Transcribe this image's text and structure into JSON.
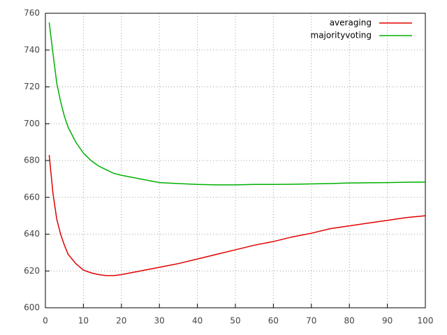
{
  "chart_data": {
    "type": "line",
    "x": [
      1,
      2,
      3,
      4,
      5,
      6,
      8,
      10,
      12,
      14,
      16,
      18,
      20,
      25,
      30,
      35,
      40,
      45,
      50,
      55,
      60,
      65,
      70,
      75,
      80,
      85,
      90,
      95,
      100
    ],
    "series": [
      {
        "name": "averaging",
        "color": "#e00000",
        "values": [
          683,
          662,
          648,
          640,
          634,
          629,
          624,
          620.5,
          619,
          618,
          617.5,
          617.5,
          618,
          620,
          622,
          624,
          626.5,
          629,
          631.5,
          634,
          636,
          638.5,
          640.5,
          643,
          644.5,
          646,
          647.5,
          649,
          650
        ]
      },
      {
        "name": "majorityvoting",
        "color": "#00b000",
        "values": [
          755,
          738,
          722,
          712,
          704,
          698,
          690,
          684,
          680,
          677,
          675,
          673,
          672,
          670,
          668,
          667.5,
          667,
          666.8,
          666.8,
          667,
          667,
          667.1,
          667.3,
          667.5,
          667.8,
          667.9,
          668,
          668.2,
          668.3
        ]
      }
    ],
    "xlim": [
      0,
      100
    ],
    "xticks": [
      0,
      10,
      20,
      30,
      40,
      50,
      60,
      70,
      80,
      90,
      100
    ],
    "ylim": [
      600,
      760
    ],
    "yticks": [
      600,
      620,
      640,
      660,
      680,
      700,
      720,
      740,
      760
    ],
    "grid": true,
    "legend": "top-right"
  }
}
